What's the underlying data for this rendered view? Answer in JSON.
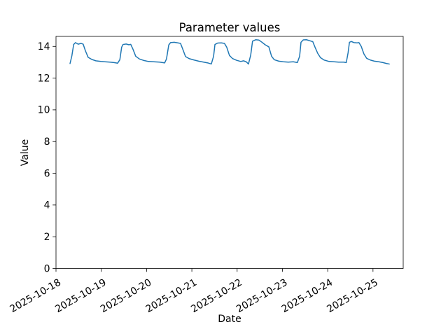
{
  "figure": {
    "background": "#ffffff",
    "spine_color": "#000000"
  },
  "chart_data": {
    "type": "line",
    "title": "Parameter values",
    "xlabel": "Date",
    "ylabel": "Value",
    "grid": false,
    "legend_position": "none",
    "x_start_date": "2025-10-18",
    "x_tick_labels": [
      "2025-10-18",
      "2025-10-19",
      "2025-10-20",
      "2025-10-21",
      "2025-10-22",
      "2025-10-23",
      "2025-10-24",
      "2025-10-25"
    ],
    "x_tick_positions_days": [
      0,
      1,
      2,
      3,
      4,
      5,
      6,
      7
    ],
    "x_tick_rotation_deg": 30,
    "y_tick_labels": [
      "0",
      "2",
      "4",
      "6",
      "8",
      "10",
      "12",
      "14"
    ],
    "y_ticks": [
      0,
      2,
      4,
      6,
      8,
      10,
      12,
      14
    ],
    "xlim_days": [
      0,
      7.667
    ],
    "ylim": [
      0,
      14.63
    ],
    "series": [
      {
        "name": "parameter-values",
        "color": "#1f77b4",
        "line_width": 1.5,
        "points_days_value": [
          [
            0.31,
            12.92
          ],
          [
            0.35,
            13.4
          ],
          [
            0.39,
            14.12
          ],
          [
            0.43,
            14.24
          ],
          [
            0.49,
            14.14
          ],
          [
            0.55,
            14.19
          ],
          [
            0.6,
            14.14
          ],
          [
            0.65,
            13.72
          ],
          [
            0.71,
            13.31
          ],
          [
            0.79,
            13.18
          ],
          [
            0.88,
            13.09
          ],
          [
            0.99,
            13.05
          ],
          [
            1.08,
            13.03
          ],
          [
            1.19,
            13.01
          ],
          [
            1.28,
            12.98
          ],
          [
            1.36,
            12.94
          ],
          [
            1.41,
            13.16
          ],
          [
            1.45,
            13.95
          ],
          [
            1.48,
            14.12
          ],
          [
            1.55,
            14.15
          ],
          [
            1.61,
            14.1
          ],
          [
            1.65,
            14.13
          ],
          [
            1.7,
            13.82
          ],
          [
            1.76,
            13.38
          ],
          [
            1.84,
            13.21
          ],
          [
            1.93,
            13.12
          ],
          [
            2.04,
            13.05
          ],
          [
            2.16,
            13.03
          ],
          [
            2.29,
            13.01
          ],
          [
            2.4,
            12.96
          ],
          [
            2.44,
            13.21
          ],
          [
            2.49,
            14.09
          ],
          [
            2.53,
            14.24
          ],
          [
            2.61,
            14.26
          ],
          [
            2.69,
            14.22
          ],
          [
            2.75,
            14.19
          ],
          [
            2.8,
            13.82
          ],
          [
            2.86,
            13.36
          ],
          [
            2.94,
            13.23
          ],
          [
            3.05,
            13.14
          ],
          [
            3.15,
            13.07
          ],
          [
            3.26,
            13.01
          ],
          [
            3.35,
            12.96
          ],
          [
            3.43,
            12.89
          ],
          [
            3.48,
            13.38
          ],
          [
            3.51,
            14.12
          ],
          [
            3.57,
            14.21
          ],
          [
            3.65,
            14.22
          ],
          [
            3.72,
            14.19
          ],
          [
            3.77,
            13.95
          ],
          [
            3.83,
            13.43
          ],
          [
            3.9,
            13.23
          ],
          [
            3.99,
            13.12
          ],
          [
            4.08,
            13.05
          ],
          [
            4.14,
            13.09
          ],
          [
            4.2,
            13.03
          ],
          [
            4.25,
            12.89
          ],
          [
            4.3,
            13.46
          ],
          [
            4.34,
            14.33
          ],
          [
            4.41,
            14.42
          ],
          [
            4.48,
            14.4
          ],
          [
            4.54,
            14.28
          ],
          [
            4.62,
            14.1
          ],
          [
            4.7,
            13.97
          ],
          [
            4.76,
            13.38
          ],
          [
            4.82,
            13.16
          ],
          [
            4.92,
            13.07
          ],
          [
            5.02,
            13.03
          ],
          [
            5.13,
            13.01
          ],
          [
            5.24,
            13.03
          ],
          [
            5.33,
            12.98
          ],
          [
            5.38,
            13.38
          ],
          [
            5.41,
            14.26
          ],
          [
            5.46,
            14.41
          ],
          [
            5.53,
            14.42
          ],
          [
            5.61,
            14.35
          ],
          [
            5.67,
            14.3
          ],
          [
            5.72,
            13.95
          ],
          [
            5.78,
            13.56
          ],
          [
            5.84,
            13.29
          ],
          [
            5.92,
            13.14
          ],
          [
            6.03,
            13.05
          ],
          [
            6.14,
            13.03
          ],
          [
            6.24,
            13.01
          ],
          [
            6.35,
            13.01
          ],
          [
            6.41,
            12.98
          ],
          [
            6.45,
            13.6
          ],
          [
            6.48,
            14.26
          ],
          [
            6.52,
            14.31
          ],
          [
            6.58,
            14.24
          ],
          [
            6.65,
            14.22
          ],
          [
            6.69,
            14.24
          ],
          [
            6.74,
            14.0
          ],
          [
            6.8,
            13.52
          ],
          [
            6.86,
            13.25
          ],
          [
            6.94,
            13.14
          ],
          [
            7.03,
            13.07
          ],
          [
            7.13,
            13.03
          ],
          [
            7.22,
            12.98
          ],
          [
            7.3,
            12.92
          ],
          [
            7.36,
            12.89
          ]
        ]
      }
    ]
  }
}
